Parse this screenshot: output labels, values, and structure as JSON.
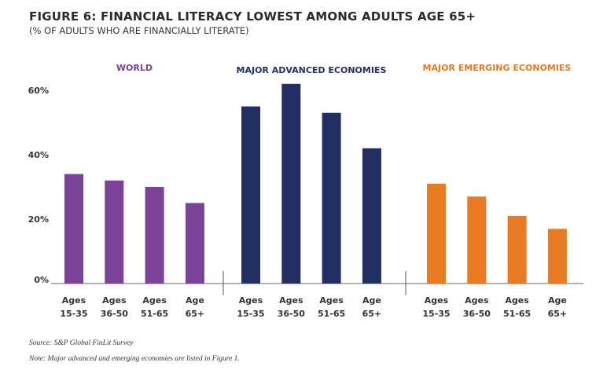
{
  "chart_data": {
    "type": "bar",
    "title": "FIGURE 6: FINANCIAL LITERACY LOWEST AMONG ADULTS AGE 65+",
    "subtitle": "(% OF ADULTS WHO ARE FINANCIALLY LITERATE)",
    "ylim": [
      0,
      60
    ],
    "yticks": [
      "0%",
      "20%",
      "40%",
      "60%"
    ],
    "ytick_values": [
      0,
      20,
      40,
      60
    ],
    "grid": false,
    "groups": [
      {
        "name": "WORLD",
        "color": "#7a4397",
        "categories": [
          [
            "Ages",
            "15-35"
          ],
          [
            "Ages",
            "36-50"
          ],
          [
            "Ages",
            "51-65"
          ],
          [
            "Age",
            "65+"
          ]
        ],
        "values": [
          34,
          32,
          30,
          25
        ]
      },
      {
        "name": "MAJOR ADVANCED ECONOMIES",
        "color": "#222f63",
        "categories": [
          [
            "Ages",
            "15-35"
          ],
          [
            "Ages",
            "36-50"
          ],
          [
            "Ages",
            "51-65"
          ],
          [
            "Age",
            "65+"
          ]
        ],
        "values": [
          55,
          62,
          53,
          42
        ]
      },
      {
        "name": "MAJOR EMERGING ECONOMIES",
        "color": "#e87a22",
        "categories": [
          [
            "Ages",
            "15-35"
          ],
          [
            "Ages",
            "36-50"
          ],
          [
            "Ages",
            "51-65"
          ],
          [
            "Age",
            "65+"
          ]
        ],
        "values": [
          31,
          27,
          21,
          17
        ]
      }
    ],
    "source": "Source: S&P Global FinLit Survey",
    "note": "Note: Major advanced and emerging economies are listed in Figure 1."
  }
}
